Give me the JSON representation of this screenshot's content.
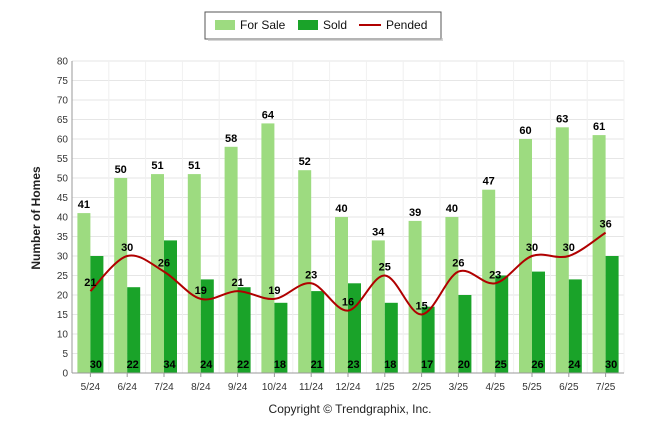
{
  "chart_data": {
    "type": "bar",
    "categories": [
      "5/24",
      "6/24",
      "7/24",
      "8/24",
      "9/24",
      "10/24",
      "11/24",
      "12/24",
      "1/25",
      "2/25",
      "3/25",
      "4/25",
      "5/25",
      "6/25",
      "7/25"
    ],
    "series": [
      {
        "name": "For Sale",
        "type": "bar",
        "color": "#9ddb80",
        "values": [
          41,
          50,
          51,
          51,
          58,
          64,
          52,
          40,
          34,
          39,
          40,
          47,
          60,
          63,
          61
        ]
      },
      {
        "name": "Sold",
        "type": "bar",
        "color": "#1aa329",
        "values": [
          30,
          22,
          34,
          24,
          22,
          18,
          21,
          23,
          18,
          17,
          20,
          25,
          26,
          24,
          30
        ]
      },
      {
        "name": "Pended",
        "type": "line",
        "color": "#b00000",
        "values": [
          21,
          30,
          26,
          19,
          21,
          19,
          23,
          16,
          25,
          15,
          26,
          23,
          30,
          30,
          36
        ]
      }
    ],
    "title": "",
    "xlabel": "",
    "ylabel": "Number of Homes",
    "ylim": [
      0,
      80
    ],
    "yticks": [
      0,
      5,
      10,
      15,
      20,
      25,
      30,
      35,
      40,
      45,
      50,
      55,
      60,
      65,
      70,
      75,
      80
    ],
    "grid": true,
    "legend": "top-center"
  },
  "footer": {
    "copyright": "Copyright © Trendgraphix, Inc."
  }
}
